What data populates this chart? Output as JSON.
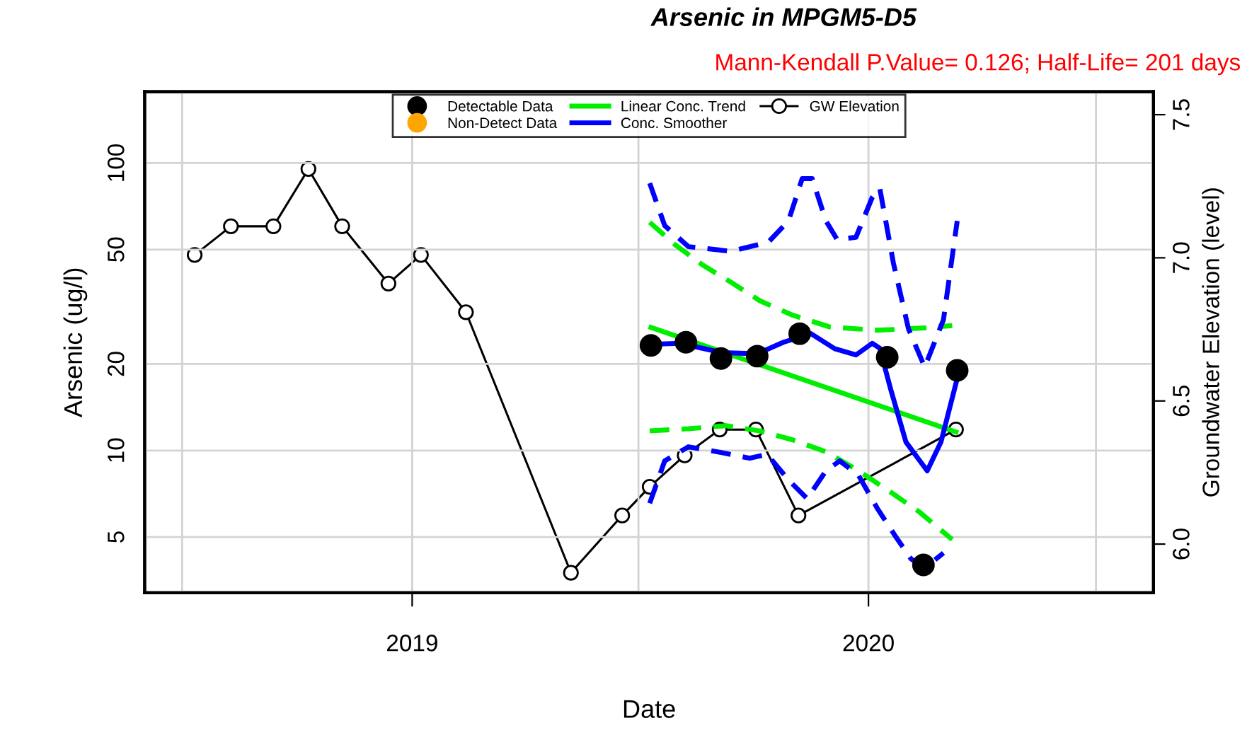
{
  "chart_data": {
    "type": "line",
    "title": "Arsenic in MPGM5-D5",
    "subtitle": "Mann-Kendall P.Value= 0.126; Half-Life= 201 days",
    "xlabel": "Date",
    "ylabel": "Arsenic (ug/l)",
    "y2label": "Groundwater Elevation (level)",
    "xlim": [
      "2018-06-01",
      "2020-08-16"
    ],
    "xticks": [
      {
        "value": "2018-07-01",
        "label": null
      },
      {
        "value": "2019-01-01",
        "label": "2019"
      },
      {
        "value": "2019-07-01",
        "label": null
      },
      {
        "value": "2020-01-01",
        "label": "2020"
      },
      {
        "value": "2020-07-01",
        "label": null
      }
    ],
    "log": "y",
    "ylim": [
      3.2,
      177
    ],
    "yticks": [
      5,
      10,
      20,
      50,
      100
    ],
    "y2lim": [
      5.83,
      7.58
    ],
    "y2ticks": [
      {
        "value": 6,
        "label": "6.0"
      },
      {
        "value": 6.5,
        "label": "6.5"
      },
      {
        "value": 7,
        "label": "7.0"
      },
      {
        "value": 7.5,
        "label": "7.5"
      }
    ],
    "grid": true,
    "legend": "top",
    "series": [
      {
        "name": "Detectable Data",
        "type": "scatter",
        "color": "#000000",
        "marker": "circle",
        "x": [
          "2019-07-11",
          "2019-08-08",
          "2019-09-05",
          "2019-10-04",
          "2019-11-07",
          "2020-01-16",
          "2020-02-14",
          "2020-03-12"
        ],
        "values": [
          23.2,
          23.8,
          20.9,
          21.3,
          25.5,
          21.1,
          4.0,
          19.0
        ]
      },
      {
        "name": "Non-Detect Data",
        "type": "scatter",
        "color": "#ffa500",
        "marker": "circle"
      },
      {
        "name": "Linear Conc. Trend",
        "color": "#00ee00",
        "line_style": "solid",
        "x": [
          "2019-07-11",
          "2020-03-11"
        ],
        "values": [
          26.8,
          11.6
        ]
      },
      {
        "name": "Conc. Smoother",
        "color": "#0000ff",
        "line_style": "solid",
        "x": [
          "2019-07-11",
          "2019-08-03",
          "2019-09-06",
          "2019-10-04",
          "2019-10-25",
          "2019-11-16",
          "2019-12-05",
          "2019-12-22",
          "2020-01-04",
          "2020-01-10",
          "2020-01-19",
          "2020-01-31",
          "2020-02-17",
          "2020-02-28",
          "2020-03-12"
        ],
        "values": [
          23.4,
          23.6,
          21.9,
          21.7,
          23.8,
          25.5,
          22.6,
          21.5,
          23.6,
          22.7,
          16.2,
          10.7,
          8.5,
          10.7,
          17.8
        ]
      },
      {
        "name": "GW Elevation",
        "axis": "y2",
        "color": "#000000",
        "marker": "circle",
        "line_style": "solid",
        "x": [
          "2018-07-11",
          "2018-08-09",
          "2018-09-12",
          "2018-10-10",
          "2018-11-06",
          "2018-12-13",
          "2019-01-08",
          "2019-02-13",
          "2019-05-08",
          "2019-06-18",
          "2019-07-10",
          "2019-08-07",
          "2019-09-04",
          "2019-10-03",
          "2019-11-06",
          "2020-03-11"
        ],
        "values": [
          7.01,
          7.11,
          7.11,
          7.31,
          7.11,
          6.91,
          7.01,
          6.81,
          5.9,
          6.1,
          6.2,
          6.31,
          6.4,
          6.4,
          6.1,
          6.4
        ]
      },
      {
        "color": "#00ee00",
        "line_style": "dashed",
        "x": [
          "2019-07-10",
          "2019-07-30",
          "2019-08-22",
          "2019-09-13",
          "2019-10-06",
          "2019-11-01",
          "2019-12-01",
          "2020-01-08",
          "2020-02-15",
          "2020-03-08"
        ],
        "values": [
          62.2,
          52.1,
          44.0,
          38.5,
          33.2,
          29.6,
          26.9,
          26.2,
          26.7,
          27.2
        ]
      },
      {
        "color": "#00ee00",
        "line_style": "dashed",
        "x": [
          "2019-07-10",
          "2019-08-10",
          "2019-09-09",
          "2019-10-06",
          "2019-11-01",
          "2019-11-28",
          "2019-12-24",
          "2020-01-16",
          "2020-02-11",
          "2020-03-08"
        ],
        "values": [
          11.7,
          11.9,
          12.2,
          11.7,
          10.9,
          9.9,
          8.5,
          7.3,
          6.1,
          4.9
        ]
      },
      {
        "color": "#0000ff",
        "line_style": "dashed",
        "x": [
          "2019-07-10",
          "2019-07-22",
          "2019-08-10",
          "2019-09-13",
          "2019-10-13",
          "2019-10-29",
          "2019-11-09",
          "2019-11-17",
          "2019-11-28",
          "2019-12-07",
          "2019-12-22",
          "2020-01-04",
          "2020-01-10",
          "2020-01-21",
          "2020-02-02",
          "2020-02-15",
          "2020-03-01",
          "2020-03-12"
        ],
        "values": [
          85.1,
          60.6,
          51.2,
          49.3,
          53.1,
          62.9,
          88.3,
          88.3,
          62.9,
          54.1,
          55.2,
          75.9,
          81.9,
          44.8,
          26.5,
          19.5,
          28.5,
          62.9
        ]
      },
      {
        "color": "#0000ff",
        "line_style": "dashed",
        "x": [
          "2019-07-10",
          "2019-07-22",
          "2019-08-10",
          "2019-09-02",
          "2019-09-28",
          "2019-10-12",
          "2019-10-29",
          "2019-11-13",
          "2019-11-28",
          "2019-12-09",
          "2019-12-24",
          "2020-01-08",
          "2020-01-23",
          "2020-02-04",
          "2020-02-15",
          "2020-03-01"
        ],
        "values": [
          6.55,
          9.2,
          10.3,
          9.9,
          9.4,
          9.7,
          7.9,
          6.8,
          8.5,
          9.2,
          8.2,
          6.3,
          5.0,
          4.2,
          3.9,
          4.4
        ]
      }
    ]
  }
}
